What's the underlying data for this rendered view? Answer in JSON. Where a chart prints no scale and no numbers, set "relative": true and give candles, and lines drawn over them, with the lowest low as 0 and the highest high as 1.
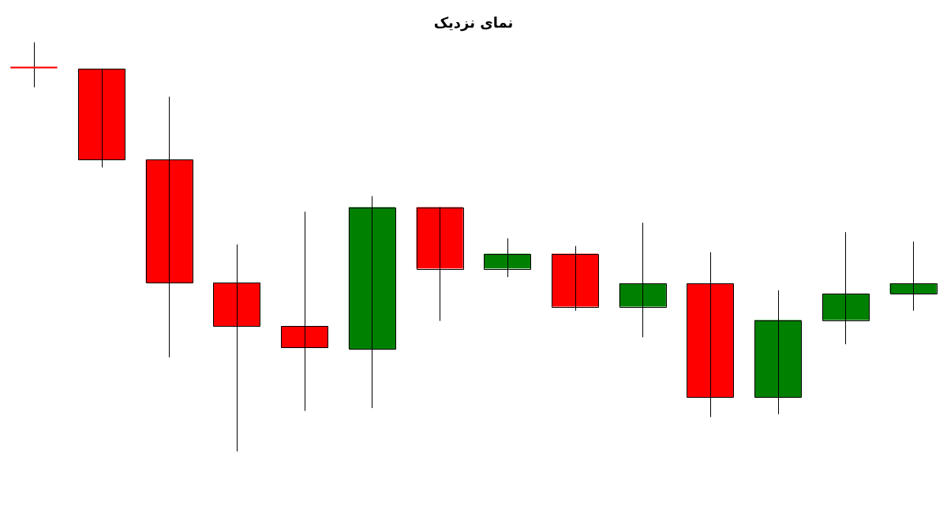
{
  "chart_data": {
    "type": "candlestick",
    "title": "نمای نزدیک",
    "relative": true,
    "categories": [
      null,
      null,
      null,
      null,
      null,
      null,
      null,
      null,
      null,
      null,
      null,
      null,
      null,
      null
    ],
    "ohlc": [
      [
        0.939,
        1,
        0.89,
        0.937
      ],
      [
        0.935,
        0.935,
        0.694,
        0.713
      ],
      [
        0.713,
        0.867,
        0.23,
        0.413
      ],
      [
        0.413,
        0.506,
        0,
        0.306
      ],
      [
        0.306,
        0.586,
        0.099,
        0.253
      ],
      [
        0.251,
        0.624,
        0.106,
        0.597
      ],
      [
        0.597,
        0.597,
        0.319,
        0.447
      ],
      [
        0.447,
        0.521,
        0.426,
        0.483
      ],
      [
        0.483,
        0.502,
        0.344,
        0.354
      ],
      [
        0.354,
        0.559,
        0.279,
        0.411
      ],
      [
        0.411,
        0.487,
        0.084,
        0.133
      ],
      [
        0.133,
        0.394,
        0.091,
        0.321
      ],
      [
        0.321,
        0.536,
        0.262,
        0.386
      ],
      [
        0.386,
        0.513,
        0.344,
        0.411
      ]
    ],
    "colors": [
      "#ff0000",
      "#ff0000",
      "#ff0000",
      "#ff0000",
      "#ff0000",
      "#008000",
      "#ff0000",
      "#008000",
      "#ff0000",
      "#008000",
      "#ff0000",
      "#008000",
      "#008000",
      "#008000"
    ]
  }
}
